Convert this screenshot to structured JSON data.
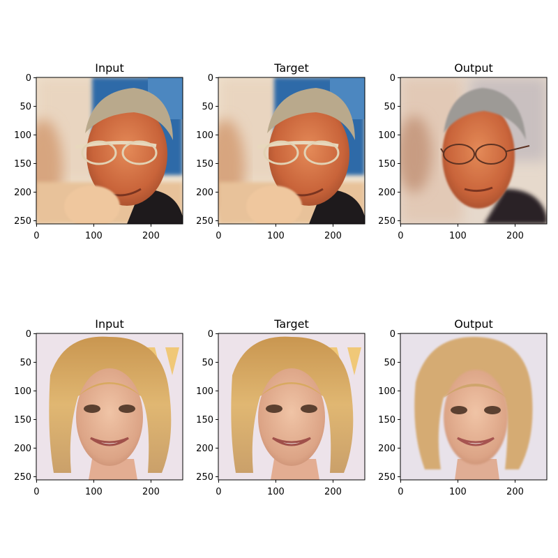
{
  "figure": {
    "panel_titles": [
      "Input",
      "Target",
      "Output"
    ],
    "x_ticks": [
      "0",
      "100",
      "200"
    ],
    "y_ticks": [
      "0",
      "50",
      "100",
      "150",
      "200",
      "250"
    ]
  },
  "rows": [
    {
      "subject": "older man with glasses, hand under chin",
      "panels": [
        {
          "title": "Input",
          "image": "sharp-photo"
        },
        {
          "title": "Target",
          "image": "sharp-photo"
        },
        {
          "title": "Output",
          "image": "smoothed-reconstruction"
        }
      ]
    },
    {
      "subject": "smiling blonde woman",
      "panels": [
        {
          "title": "Input",
          "image": "sharp-photo"
        },
        {
          "title": "Target",
          "image": "sharp-photo"
        },
        {
          "title": "Output",
          "image": "smoothed-reconstruction"
        }
      ]
    }
  ],
  "colors": {
    "man_background_blue": "#2f6aa8",
    "man_skin": "#d9774a",
    "man_hair": "#b6a68a",
    "woman_background": "#ede3ea",
    "woman_hair": "#d9ad65",
    "woman_skin": "#e8b89a"
  }
}
